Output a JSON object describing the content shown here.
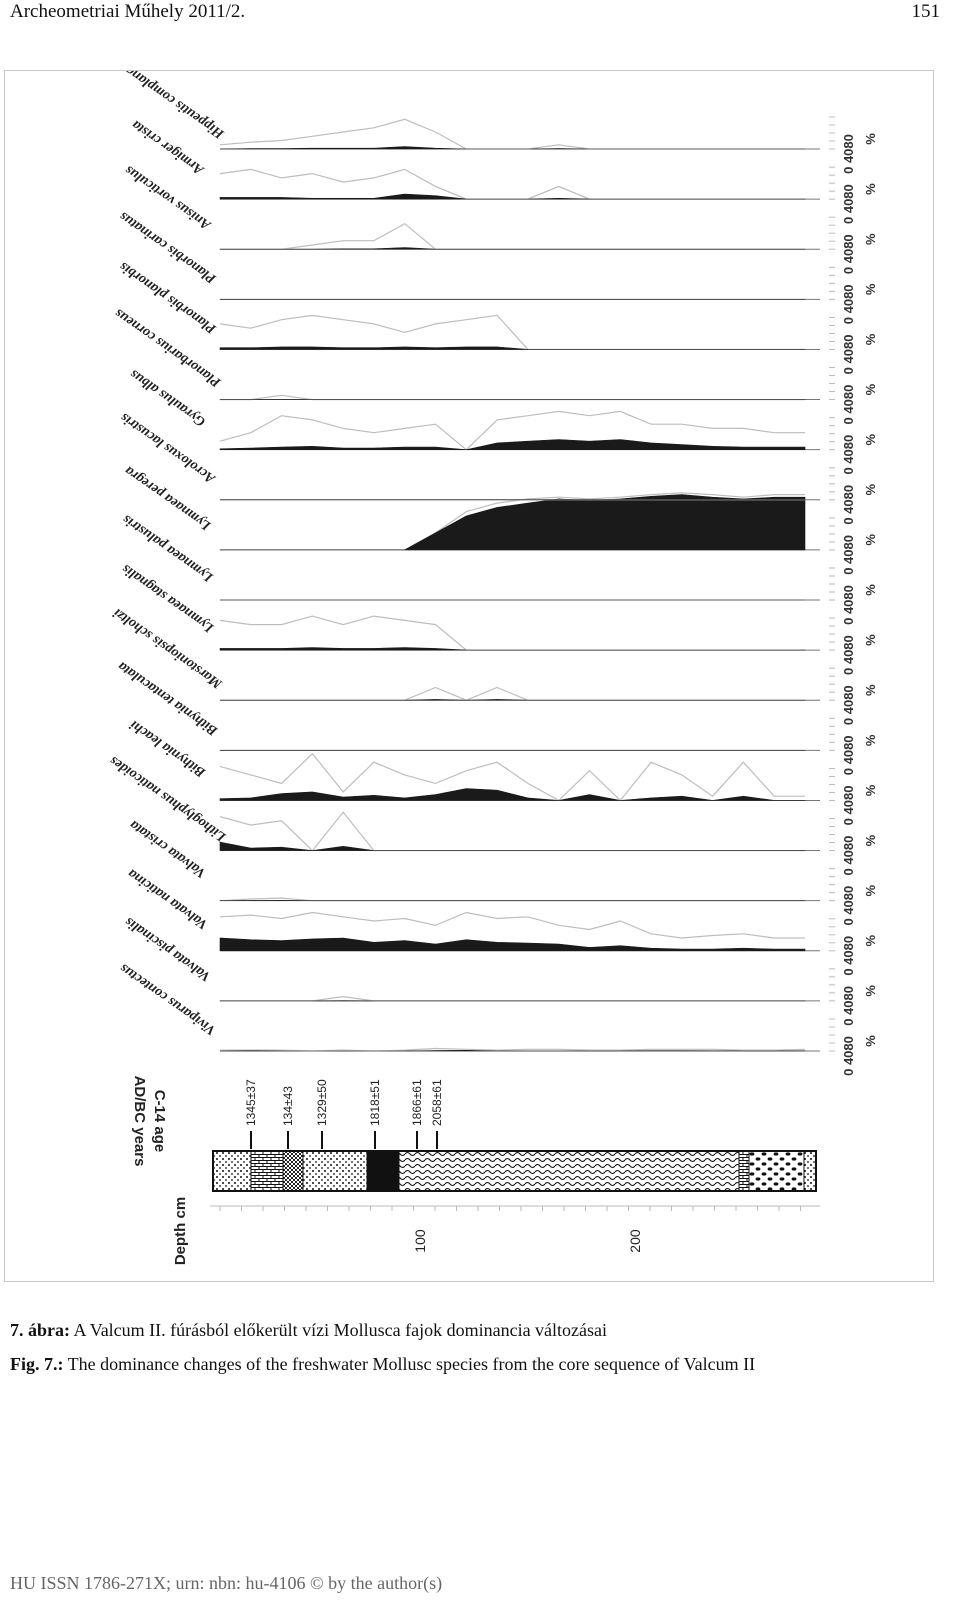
{
  "header": {
    "left": "Archeometriai Műhely 2011/2.",
    "right": "151"
  },
  "figure": {
    "chart_data": {
      "type": "area",
      "orientation": "rotated 90°; depth runs along page horizontally",
      "x_label": "Depth cm",
      "x_ticks": [
        "100",
        "200"
      ],
      "axis_tick_label": "0 4080",
      "unit": "%",
      "c14_label": [
        "C-14 age",
        "AD/BC years"
      ],
      "c14_dates": [
        "1345±37",
        "134±43",
        "1329±50",
        "1818±51",
        "1866±61",
        "2058±61"
      ],
      "species": [
        {
          "name": "Viviparus contectus",
          "values": [
            1,
            1,
            1,
            0,
            1,
            0,
            1,
            3,
            2,
            1,
            2,
            2,
            1,
            1,
            2,
            2,
            2,
            1,
            1,
            2
          ],
          "dense": [
            0,
            0.3,
            0,
            0,
            0,
            0,
            0,
            0.6,
            0.8,
            0,
            0,
            0,
            0,
            0,
            0.3,
            0.4,
            0.2,
            0,
            0,
            0.2
          ]
        },
        {
          "name": "Valvata piscinalis",
          "values": [
            0,
            0,
            0,
            0,
            5,
            0,
            0,
            0,
            0,
            0,
            0,
            0,
            0,
            0,
            0,
            0,
            0,
            0,
            0,
            0
          ],
          "dense": [
            0,
            0,
            0,
            0,
            0.2,
            0,
            0,
            0,
            0,
            0,
            0,
            0,
            0,
            0,
            0,
            0,
            0,
            0,
            0,
            0
          ]
        },
        {
          "name": "Valvata naticina",
          "values": [
            40,
            42,
            38,
            45,
            40,
            35,
            38,
            30,
            45,
            38,
            40,
            30,
            25,
            35,
            20,
            15,
            18,
            20,
            15,
            15
          ],
          "dense": [
            15,
            13,
            12,
            14,
            15,
            10,
            12,
            8,
            13,
            10,
            9,
            8,
            4,
            6,
            3,
            2,
            2,
            3,
            2,
            2
          ]
        },
        {
          "name": "Valvata cristata",
          "values": [
            0,
            2,
            3,
            0,
            0,
            0,
            0,
            0,
            0,
            0,
            0,
            0,
            0,
            0,
            0,
            0,
            0,
            0,
            0,
            0
          ],
          "dense": [
            0,
            0.2,
            0.3,
            0,
            0,
            0,
            0,
            0,
            0,
            0,
            0,
            0,
            0,
            0,
            0,
            0,
            0,
            0,
            0,
            0
          ]
        },
        {
          "name": "Lithoglyphus naticoides",
          "values": [
            40,
            30,
            35,
            0,
            45,
            0,
            0,
            0,
            0,
            0,
            0,
            0,
            0,
            0,
            0,
            0,
            0,
            0,
            0,
            0
          ],
          "dense": [
            10,
            3,
            4,
            0,
            5,
            0,
            0,
            0,
            0,
            0,
            0,
            0,
            0,
            0,
            0,
            0,
            0,
            0,
            0,
            0
          ]
        },
        {
          "name": "Bithynia leachi",
          "values": [
            40,
            30,
            20,
            55,
            10,
            45,
            30,
            20,
            35,
            45,
            20,
            0,
            35,
            0,
            45,
            30,
            5,
            45,
            5,
            5
          ],
          "dense": [
            2,
            3,
            8,
            10,
            4,
            6,
            3,
            7,
            14,
            12,
            3,
            0,
            7,
            0,
            3,
            5,
            0,
            5,
            0,
            0
          ]
        },
        {
          "name": "Bithynia tentaculata",
          "values": [
            0,
            0,
            0,
            0,
            0,
            0,
            0,
            0,
            0,
            0,
            0,
            0,
            0,
            0,
            0,
            0,
            0,
            0,
            0,
            0
          ],
          "dense": [
            0,
            0,
            0,
            0,
            0,
            0,
            0,
            0,
            0,
            0,
            0,
            0,
            0,
            0,
            0,
            0,
            0,
            0,
            0,
            0
          ]
        },
        {
          "name": "Marstoniopsis scholtzi",
          "values": [
            0,
            0,
            0,
            0,
            0,
            0,
            0,
            15,
            0,
            15,
            0,
            0,
            0,
            0,
            0,
            0,
            0,
            0,
            0,
            0
          ],
          "dense": [
            0,
            0,
            0,
            0,
            0,
            0,
            0,
            1,
            0,
            1,
            0,
            0,
            0,
            0,
            0,
            0,
            0,
            0,
            0,
            0
          ]
        },
        {
          "name": "Lymnaea stagnalis",
          "values": [
            35,
            30,
            30,
            40,
            30,
            40,
            35,
            30,
            0,
            0,
            0,
            0,
            0,
            0,
            0,
            0,
            0,
            0,
            0,
            0
          ],
          "dense": [
            2,
            2,
            2,
            3,
            2,
            2,
            3,
            2,
            0,
            0,
            0,
            0,
            0,
            0,
            0,
            0,
            0,
            0,
            0,
            0
          ]
        },
        {
          "name": "Lymnaea palustris",
          "values": [
            0,
            0,
            0,
            0,
            0,
            0,
            0,
            0,
            0,
            0,
            0,
            0,
            0,
            0,
            0,
            0,
            0,
            0,
            0,
            0
          ],
          "dense": [
            0,
            0,
            0,
            0,
            0,
            0,
            0,
            0,
            0,
            0,
            0,
            0,
            0,
            0,
            0,
            0,
            0,
            0,
            0,
            0
          ]
        },
        {
          "name": "Lymnaea peregra",
          "values": [
            0,
            0,
            0,
            0,
            0,
            0,
            0,
            20,
            45,
            55,
            60,
            62,
            60,
            62,
            65,
            67,
            65,
            62,
            65,
            65
          ],
          "dense": [
            0,
            0,
            0,
            0,
            0,
            0,
            0,
            20,
            40,
            50,
            55,
            60,
            58,
            60,
            63,
            65,
            62,
            60,
            62,
            62
          ]
        },
        {
          "name": "Acroloxus lacustris",
          "values": [
            0,
            0,
            0,
            0,
            0,
            0,
            0,
            0,
            0,
            0,
            0,
            0,
            0,
            0,
            0,
            0,
            0,
            0,
            0,
            0
          ],
          "dense": [
            0,
            0,
            0,
            0,
            0,
            0,
            0,
            0,
            0,
            0,
            0,
            0,
            0,
            0,
            0,
            0,
            0,
            0,
            0,
            0
          ]
        },
        {
          "name": "Gyraulus albus",
          "values": [
            10,
            20,
            40,
            35,
            25,
            20,
            25,
            30,
            0,
            35,
            40,
            45,
            40,
            45,
            30,
            30,
            25,
            25,
            20,
            20
          ],
          "dense": [
            1,
            2,
            3,
            4,
            2,
            2,
            3,
            3,
            0,
            8,
            10,
            12,
            10,
            12,
            8,
            6,
            4,
            3,
            3,
            3
          ]
        },
        {
          "name": "Planorbarius corneus",
          "values": [
            0,
            0,
            5,
            0,
            0,
            0,
            0,
            0,
            0,
            0,
            0,
            0,
            0,
            0,
            0,
            0,
            0,
            0,
            0,
            0
          ],
          "dense": [
            0,
            0,
            0,
            0,
            0,
            0,
            0,
            0,
            0,
            0,
            0,
            0,
            0,
            0,
            0,
            0,
            0,
            0,
            0,
            0
          ]
        },
        {
          "name": "Planorbis planorbis",
          "values": [
            30,
            25,
            35,
            40,
            35,
            30,
            20,
            30,
            35,
            40,
            0,
            0,
            0,
            0,
            0,
            0,
            0,
            0,
            0,
            0
          ],
          "dense": [
            2,
            2,
            3,
            3,
            2,
            2,
            3,
            2,
            3,
            3,
            0,
            0,
            0,
            0,
            0,
            0,
            0,
            0,
            0,
            0
          ]
        },
        {
          "name": "Planorbis carinatus",
          "values": [
            0,
            0,
            0,
            0,
            0,
            0,
            0,
            0,
            0,
            0,
            0,
            0,
            0,
            0,
            0,
            0,
            0,
            0,
            0,
            0
          ],
          "dense": [
            0,
            0,
            0,
            0,
            0,
            0,
            0,
            0,
            0,
            0,
            0,
            0,
            0,
            0,
            0,
            0,
            0,
            0,
            0,
            0
          ]
        },
        {
          "name": "Anisus vorticulus",
          "values": [
            0,
            0,
            0,
            5,
            10,
            10,
            30,
            0,
            0,
            0,
            0,
            0,
            0,
            0,
            0,
            0,
            0,
            0,
            0,
            0
          ],
          "dense": [
            0,
            0,
            0,
            0,
            0.5,
            0.5,
            2,
            0,
            0,
            0,
            0,
            0,
            0,
            0,
            0,
            0,
            0,
            0,
            0,
            0
          ]
        },
        {
          "name": "Armiger crista",
          "values": [
            30,
            35,
            25,
            30,
            20,
            25,
            35,
            15,
            0,
            0,
            0,
            15,
            0,
            0,
            0,
            0,
            0,
            0,
            0,
            0
          ],
          "dense": [
            2,
            2,
            2,
            1,
            1,
            1,
            6,
            4,
            0,
            0,
            0,
            1,
            0,
            0,
            0,
            0,
            0,
            0,
            0,
            0
          ]
        },
        {
          "name": "Hippeutis complanatus",
          "values": [
            5,
            8,
            10,
            15,
            20,
            25,
            35,
            20,
            0,
            0,
            0,
            5,
            0,
            0,
            0,
            0,
            0,
            0,
            0,
            0
          ],
          "dense": [
            0,
            0.5,
            0.5,
            1,
            1,
            1,
            3,
            1,
            0,
            0,
            0,
            0.5,
            0,
            0,
            0,
            0,
            0,
            0,
            0,
            0
          ]
        }
      ]
    }
  },
  "caption": {
    "hu_label": "7. ábra:",
    "hu_text": " A Valcum II. fúrásból előkerült vízi Mollusca fajok dominancia változásai",
    "en_label": "Fig. 7.:",
    "en_text": " The dominance changes of the freshwater Mollusc species from the core sequence of Valcum II"
  },
  "footer": "HU ISSN 1786-271X; urn: nbn: hu-4106 © by the author(s)"
}
